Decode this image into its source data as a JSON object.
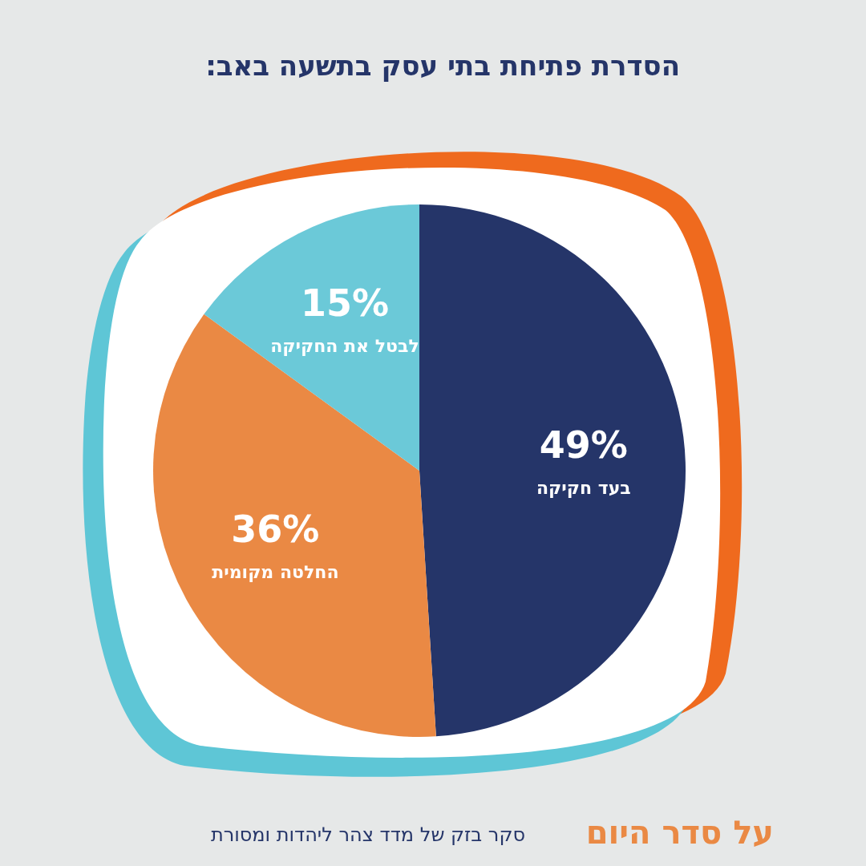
{
  "chart_data": {
    "type": "pie",
    "title": "הסדרת פתיחת בתי עסק בתשעה באב:",
    "categories": [
      "בעד חקיקה",
      "החלטה מקומית",
      "לבטל את החקיקה"
    ],
    "values": [
      49,
      36,
      15
    ],
    "colors": [
      "#253569",
      "#ea8944",
      "#6bc9d8"
    ],
    "value_labels": [
      "49%",
      "36%",
      "15%"
    ],
    "annotations": [
      "על סדר היום",
      "סקר בזק של מדד צהר ליהדות ומסורת"
    ]
  }
}
